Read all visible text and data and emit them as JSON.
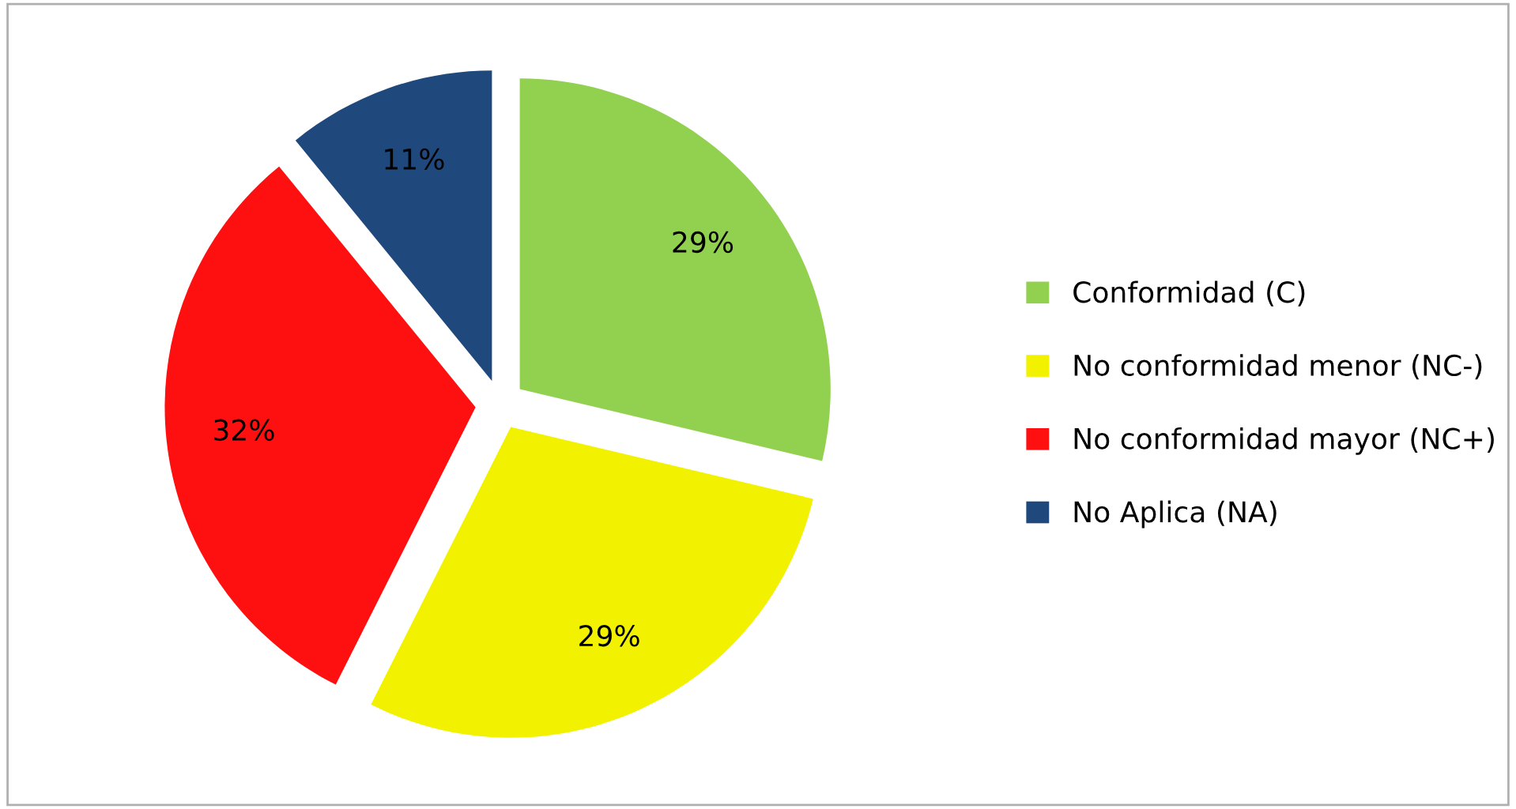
{
  "chart_data": {
    "type": "pie",
    "categories": [
      "Conformidad (C)",
      "No conformidad menor (NC-)",
      "No conformidad mayor (NC+)",
      "No Aplica (NA)"
    ],
    "values": [
      29,
      29,
      32,
      11
    ],
    "colors": [
      "#92d050",
      "#f2f200",
      "#ff1010",
      "#1f497d"
    ],
    "value_labels": [
      "29%",
      "29%",
      "32%",
      "11%"
    ],
    "legend": "right"
  }
}
